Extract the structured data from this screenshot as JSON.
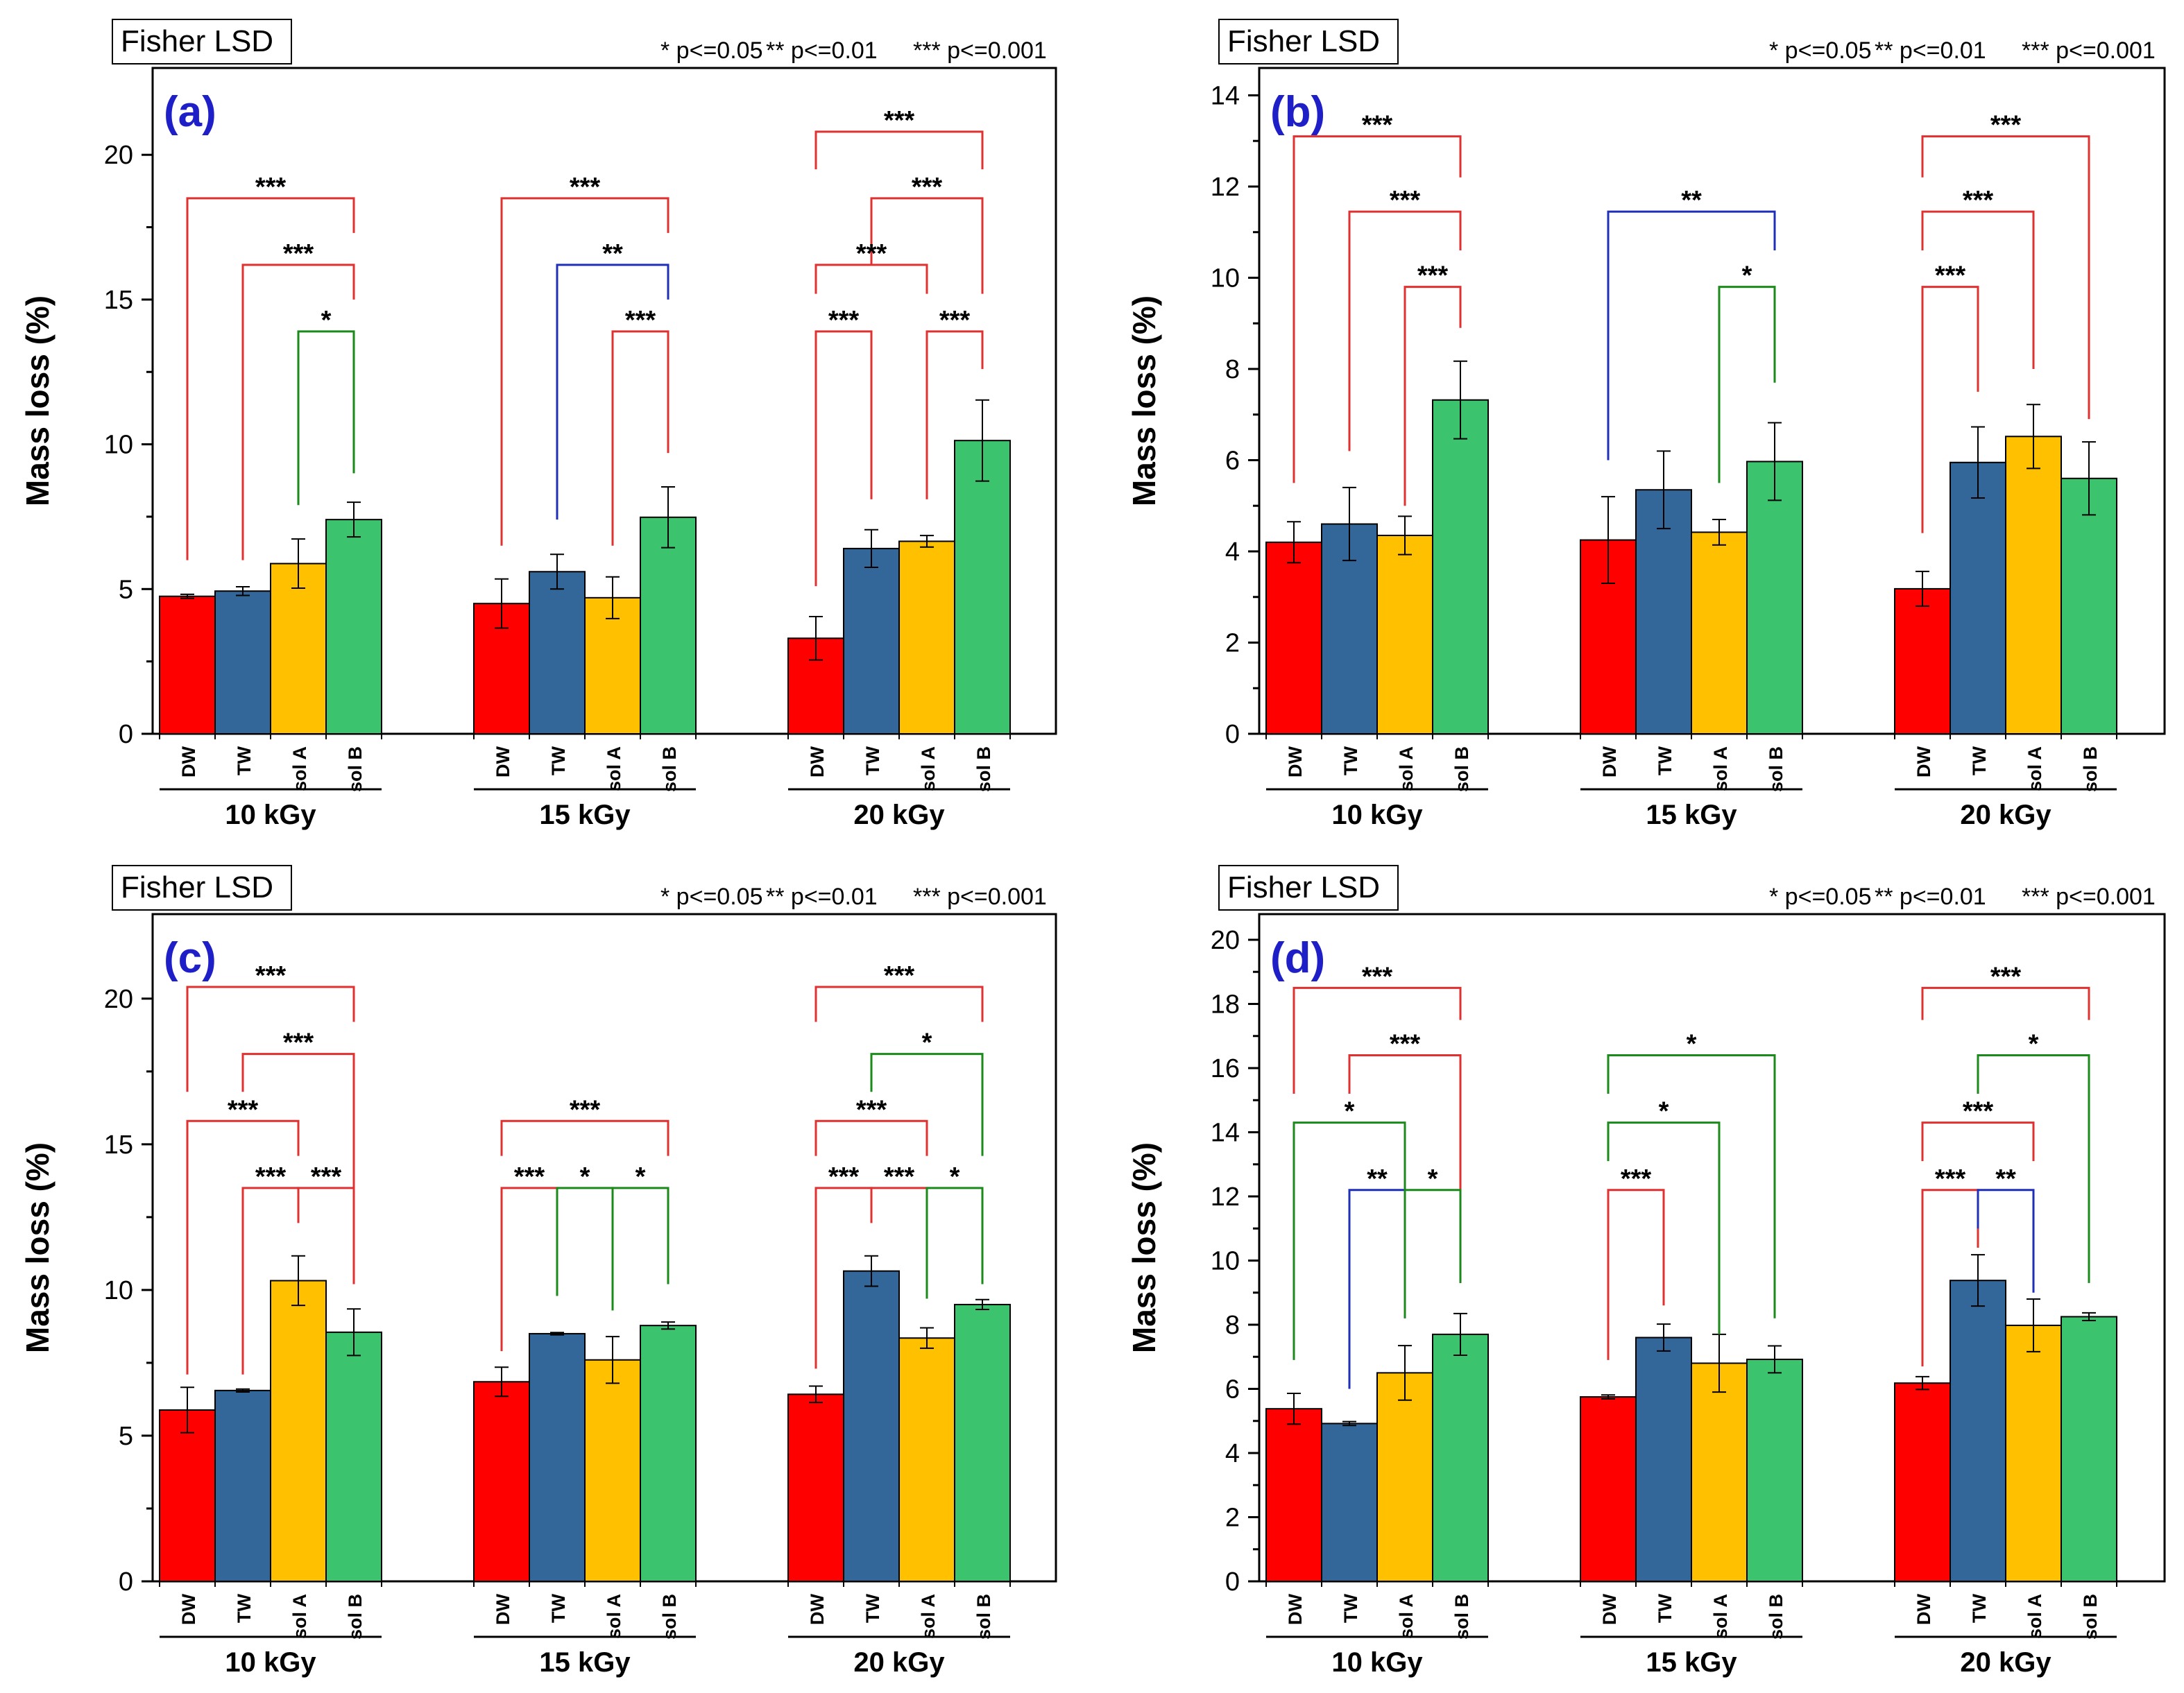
{
  "figure": {
    "colors": {
      "DW": "#ff0000",
      "TW": "#336699",
      "sol A": "#ffc000",
      "sol B": "#3cc36e"
    },
    "bracket_colors": {
      "***": "#e03030",
      "**": "#1f2fb8",
      "*": "#1a8a1a"
    }
  },
  "chart_data": [
    {
      "type": "bar",
      "panel_label": "(a)",
      "method_label": "Fisher LSD",
      "legend": [
        "* p<=0.05",
        "** p<=0.01",
        "*** p<=0.001"
      ],
      "ylabel": "Mass loss (%)",
      "ylim": [
        0,
        23
      ],
      "yticks": [
        0,
        5,
        10,
        15,
        20
      ],
      "ytick_labels": [
        "0",
        "5",
        "10",
        "15",
        "20"
      ],
      "bar_labels": [
        "DW",
        "TW",
        "sol A",
        "sol B"
      ],
      "groups": [
        {
          "label": "10 kGy",
          "values": [
            4.75,
            4.93,
            5.88,
            7.4
          ],
          "errors": [
            0.07,
            0.15,
            0.85,
            0.6
          ],
          "brackets": [
            {
              "from": 0,
              "to": 3,
              "label": "***",
              "y": 18.5,
              "y_left": 6.0,
              "y_right": 17.3
            },
            {
              "from": 1,
              "to": 3,
              "label": "***",
              "y": 16.2,
              "y_left": 6.0,
              "y_right": 15.0
            },
            {
              "from": 2,
              "to": 3,
              "label": "*",
              "y": 13.9,
              "y_left": 7.9,
              "y_right": 9.0
            }
          ]
        },
        {
          "label": "15 kGy",
          "values": [
            4.5,
            5.6,
            4.7,
            7.48
          ],
          "errors": [
            0.85,
            0.6,
            0.72,
            1.05
          ],
          "brackets": [
            {
              "from": 0,
              "to": 3,
              "label": "***",
              "y": 18.5,
              "y_left": 6.5,
              "y_right": 17.3
            },
            {
              "from": 1,
              "to": 3,
              "label": "**",
              "y": 16.2,
              "y_left": 7.4,
              "y_right": 15.0
            },
            {
              "from": 2,
              "to": 3,
              "label": "***",
              "y": 13.9,
              "y_left": 6.5,
              "y_right": 9.7
            }
          ]
        },
        {
          "label": "20 kGy",
          "values": [
            3.3,
            6.4,
            6.65,
            10.13
          ],
          "errors": [
            0.75,
            0.65,
            0.2,
            1.4
          ],
          "brackets": [
            {
              "from": 0,
              "to": 3,
              "label": "***",
              "y": 20.8,
              "y_left": 19.5,
              "y_right": 19.5
            },
            {
              "from": 1,
              "to": 3,
              "label": "***",
              "y": 18.5,
              "y_left": 16.2,
              "y_right": 15.2
            },
            {
              "from": 0,
              "to": 2,
              "label": "***",
              "y": 16.2,
              "y_left": 15.2,
              "y_right": 15.2
            },
            {
              "from": 0,
              "to": 1,
              "label": "***",
              "y": 13.9,
              "y_left": 5.1,
              "y_right": 8.1
            },
            {
              "from": 2,
              "to": 3,
              "label": "***",
              "y": 13.9,
              "y_left": 8.1,
              "y_right": 12.6
            }
          ]
        }
      ]
    },
    {
      "type": "bar",
      "panel_label": "(b)",
      "method_label": "Fisher LSD",
      "legend": [
        "* p<=0.05",
        "** p<=0.01",
        "*** p<=0.001"
      ],
      "ylabel": "Mass loss (%)",
      "ylim": [
        0,
        14.6
      ],
      "yticks": [
        0,
        2,
        4,
        6,
        8,
        10,
        12,
        14
      ],
      "ytick_labels": [
        "0",
        "2",
        "4",
        "6",
        "8",
        "10",
        "12",
        "14"
      ],
      "bar_labels": [
        "DW",
        "TW",
        "sol A",
        "sol B"
      ],
      "groups": [
        {
          "label": "10 kGy",
          "values": [
            4.2,
            4.6,
            4.35,
            7.32
          ],
          "errors": [
            0.45,
            0.8,
            0.42,
            0.85
          ],
          "brackets": [
            {
              "from": 0,
              "to": 3,
              "label": "***",
              "y": 13.1,
              "y_left": 5.5,
              "y_right": 12.2
            },
            {
              "from": 1,
              "to": 3,
              "label": "***",
              "y": 11.45,
              "y_left": 6.2,
              "y_right": 10.6
            },
            {
              "from": 2,
              "to": 3,
              "label": "***",
              "y": 9.8,
              "y_left": 5.0,
              "y_right": 8.9
            }
          ]
        },
        {
          "label": "15 kGy",
          "values": [
            4.25,
            5.35,
            4.42,
            5.97
          ],
          "errors": [
            0.95,
            0.85,
            0.28,
            0.85
          ],
          "brackets": [
            {
              "from": 0,
              "to": 3,
              "label": "**",
              "y": 11.45,
              "y_left": 6.0,
              "y_right": 10.6
            },
            {
              "from": 2,
              "to": 3,
              "label": "*",
              "y": 9.8,
              "y_left": 5.5,
              "y_right": 7.7
            }
          ]
        },
        {
          "label": "20 kGy",
          "values": [
            3.18,
            5.95,
            6.52,
            5.6
          ],
          "errors": [
            0.38,
            0.78,
            0.7,
            0.8
          ],
          "brackets": [
            {
              "from": 0,
              "to": 3,
              "label": "***",
              "y": 13.1,
              "y_left": 12.2,
              "y_right": 6.9
            },
            {
              "from": 0,
              "to": 2,
              "label": "***",
              "y": 11.45,
              "y_left": 10.6,
              "y_right": 8.0
            },
            {
              "from": 0,
              "to": 1,
              "label": "***",
              "y": 9.8,
              "y_left": 4.4,
              "y_right": 7.5
            }
          ]
        }
      ]
    },
    {
      "type": "bar",
      "panel_label": "(c)",
      "method_label": "Fisher LSD",
      "legend": [
        "* p<=0.05",
        "** p<=0.01",
        "*** p<=0.001"
      ],
      "ylabel": "Mass loss (%)",
      "ylim": [
        0,
        22.9
      ],
      "yticks": [
        0,
        5,
        10,
        15,
        20
      ],
      "ytick_labels": [
        "0",
        "5",
        "10",
        "15",
        "20"
      ],
      "bar_labels": [
        "DW",
        "TW",
        "sol A",
        "sol B"
      ],
      "groups": [
        {
          "label": "10 kGy",
          "values": [
            5.88,
            6.55,
            10.32,
            8.55
          ],
          "errors": [
            0.78,
            0.05,
            0.85,
            0.8
          ],
          "brackets": [
            {
              "from": 0,
              "to": 3,
              "label": "***",
              "y": 20.4,
              "y_left": 16.8,
              "y_right": 19.2
            },
            {
              "from": 1,
              "to": 3,
              "label": "***",
              "y": 18.1,
              "y_left": 16.8,
              "y_right": 10.2
            },
            {
              "from": 0,
              "to": 2,
              "label": "***",
              "y": 15.8,
              "y_left": 7.1,
              "y_right": 14.6
            },
            {
              "from": 1,
              "to": 2,
              "label": "***",
              "y": 13.5,
              "y_left": 7.1,
              "y_right": 12.3
            },
            {
              "from": 2,
              "to": 3,
              "label": "***",
              "y": 13.5,
              "y_left": 12.3,
              "y_right": 10.2
            }
          ]
        },
        {
          "label": "15 kGy",
          "values": [
            6.85,
            8.5,
            7.6,
            8.78
          ],
          "errors": [
            0.5,
            0.04,
            0.8,
            0.12
          ],
          "brackets": [
            {
              "from": 0,
              "to": 3,
              "label": "***",
              "y": 15.8,
              "y_left": 14.6,
              "y_right": 14.6
            },
            {
              "from": 0,
              "to": 1,
              "label": "***",
              "y": 13.5,
              "y_left": 7.9,
              "y_right": 9.8
            },
            {
              "from": 1,
              "to": 2,
              "label": "*",
              "y": 13.5,
              "y_left": 9.8,
              "y_right": 9.3
            },
            {
              "from": 2,
              "to": 3,
              "label": "*",
              "y": 13.5,
              "y_left": 9.3,
              "y_right": 10.2
            }
          ]
        },
        {
          "label": "20 kGy",
          "values": [
            6.42,
            10.65,
            8.35,
            9.5
          ],
          "errors": [
            0.28,
            0.52,
            0.35,
            0.17
          ],
          "brackets": [
            {
              "from": 0,
              "to": 3,
              "label": "***",
              "y": 20.4,
              "y_left": 19.2,
              "y_right": 19.2
            },
            {
              "from": 1,
              "to": 3,
              "label": "*",
              "y": 18.1,
              "y_left": 16.8,
              "y_right": 14.6
            },
            {
              "from": 0,
              "to": 2,
              "label": "***",
              "y": 15.8,
              "y_left": 14.6,
              "y_right": 14.6
            },
            {
              "from": 0,
              "to": 1,
              "label": "***",
              "y": 13.5,
              "y_left": 7.3,
              "y_right": 12.3
            },
            {
              "from": 1,
              "to": 2,
              "label": "***",
              "y": 13.5,
              "y_left": 12.3,
              "y_right": 9.7
            },
            {
              "from": 2,
              "to": 3,
              "label": "*",
              "y": 13.5,
              "y_left": 9.7,
              "y_right": 10.2
            }
          ]
        }
      ]
    },
    {
      "type": "bar",
      "panel_label": "(d)",
      "method_label": "Fisher LSD",
      "legend": [
        "* p<=0.05",
        "** p<=0.01",
        "*** p<=0.001"
      ],
      "ylabel": "Mass loss (%)",
      "ylim": [
        0,
        20.8
      ],
      "yticks": [
        0,
        2,
        4,
        6,
        8,
        10,
        12,
        14,
        16,
        18,
        20
      ],
      "ytick_labels": [
        "0",
        "2",
        "4",
        "6",
        "8",
        "10",
        "12",
        "14",
        "16",
        "18",
        "20"
      ],
      "bar_labels": [
        "DW",
        "TW",
        "sol A",
        "sol B"
      ],
      "groups": [
        {
          "label": "10 kGy",
          "values": [
            5.38,
            4.92,
            6.5,
            7.7
          ],
          "errors": [
            0.48,
            0.06,
            0.85,
            0.65
          ],
          "brackets": [
            {
              "from": 0,
              "to": 3,
              "label": "***",
              "y": 18.5,
              "y_left": 15.2,
              "y_right": 17.5
            },
            {
              "from": 1,
              "to": 3,
              "label": "***",
              "y": 16.4,
              "y_left": 15.2,
              "y_right": 9.3
            },
            {
              "from": 0,
              "to": 2,
              "label": "*",
              "y": 14.3,
              "y_left": 6.9,
              "y_right": 12.2
            },
            {
              "from": 1,
              "to": 2,
              "label": "**",
              "y": 12.2,
              "y_left": 6.0,
              "y_right": 8.2
            },
            {
              "from": 2,
              "to": 3,
              "label": "*",
              "y": 12.2,
              "y_left": 8.2,
              "y_right": 9.3
            }
          ]
        },
        {
          "label": "15 kGy",
          "values": [
            5.75,
            7.6,
            6.8,
            6.92
          ],
          "errors": [
            0.06,
            0.42,
            0.9,
            0.42
          ],
          "brackets": [
            {
              "from": 0,
              "to": 3,
              "label": "*",
              "y": 16.4,
              "y_left": 15.2,
              "y_right": 8.2
            },
            {
              "from": 0,
              "to": 2,
              "label": "*",
              "y": 14.3,
              "y_left": 13.1,
              "y_right": 7.7
            },
            {
              "from": 0,
              "to": 1,
              "label": "***",
              "y": 12.2,
              "y_left": 6.9,
              "y_right": 8.6
            }
          ]
        },
        {
          "label": "20 kGy",
          "values": [
            6.18,
            9.38,
            7.98,
            8.25
          ],
          "errors": [
            0.2,
            0.8,
            0.82,
            0.12
          ],
          "brackets": [
            {
              "from": 0,
              "to": 3,
              "label": "***",
              "y": 18.5,
              "y_left": 17.5,
              "y_right": 17.5
            },
            {
              "from": 1,
              "to": 3,
              "label": "*",
              "y": 16.4,
              "y_left": 15.2,
              "y_right": 9.3
            },
            {
              "from": 0,
              "to": 2,
              "label": "***",
              "y": 14.3,
              "y_left": 13.1,
              "y_right": 13.1
            },
            {
              "from": 0,
              "to": 1,
              "label": "***",
              "y": 12.2,
              "y_left": 6.7,
              "y_right": 10.4
            },
            {
              "from": 1,
              "to": 2,
              "label": "**",
              "y": 12.2,
              "y_left": 11.0,
              "y_right": 9.0
            }
          ]
        }
      ]
    }
  ]
}
